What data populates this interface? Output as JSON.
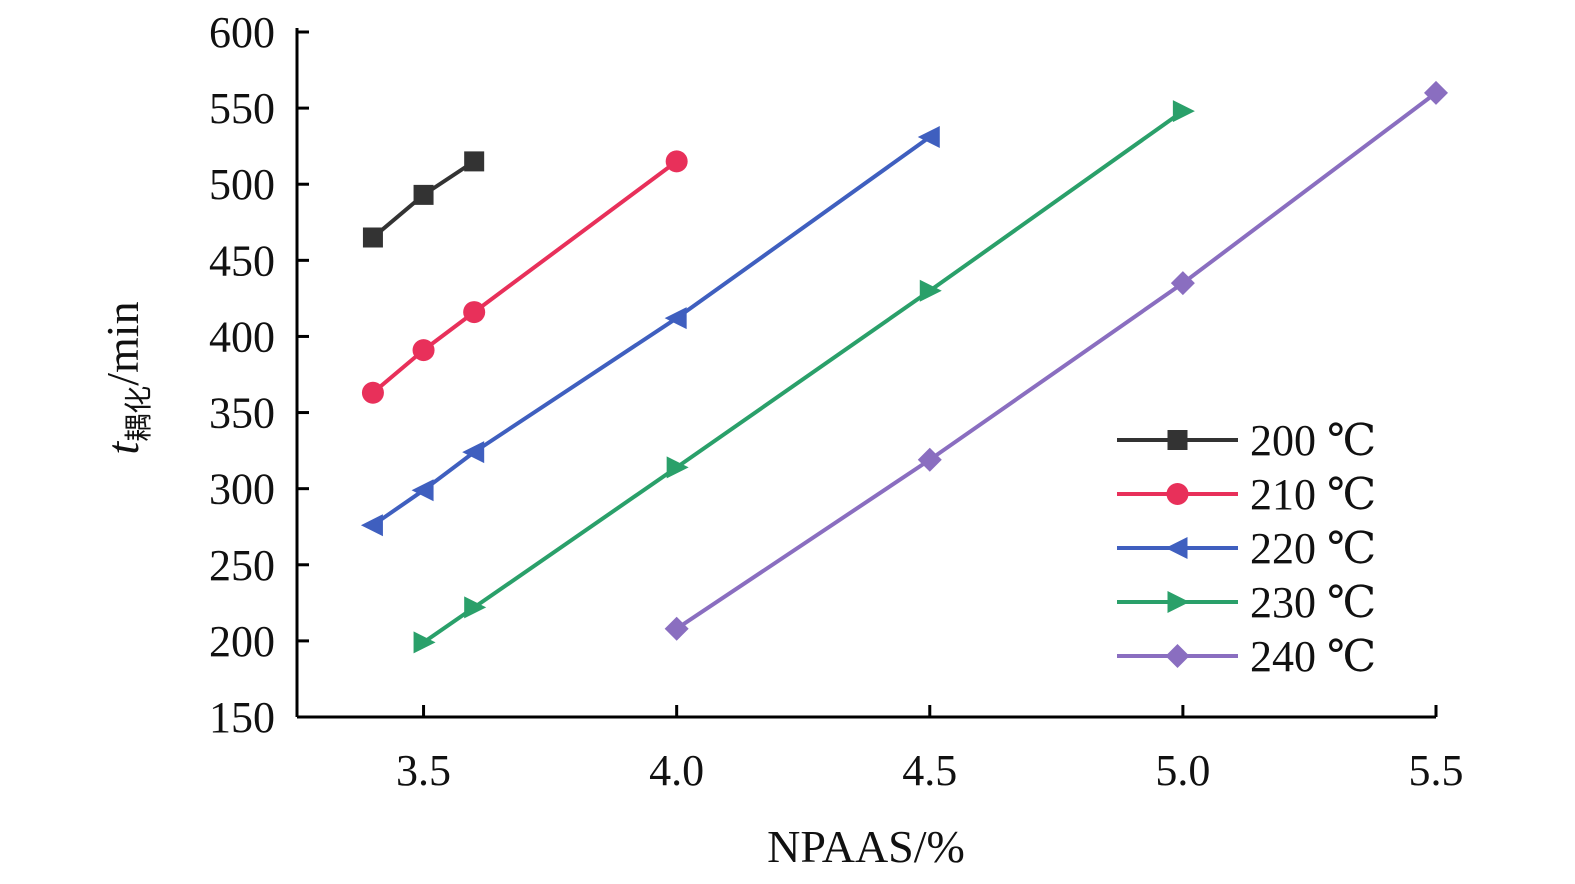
{
  "chart_data": {
    "type": "line",
    "title": "",
    "xlabel": "NPAAS/%",
    "ylabel": {
      "italic": "t",
      "subscript": "耦化",
      "unit": "/min"
    },
    "xlim": [
      3.25,
      5.5
    ],
    "ylim": [
      150,
      600
    ],
    "xticks": [
      "3.5",
      "4.0",
      "4.5",
      "5.0",
      "5.5"
    ],
    "xtick_values": [
      3.5,
      4.0,
      4.5,
      5.0,
      5.5
    ],
    "yticks": [
      "150",
      "200",
      "250",
      "300",
      "350",
      "400",
      "450",
      "500",
      "550",
      "600"
    ],
    "ytick_values": [
      150,
      200,
      250,
      300,
      350,
      400,
      450,
      500,
      550,
      600
    ],
    "grid": false,
    "legend_position": "bottom-right",
    "series": [
      {
        "name": "200 ℃",
        "color": "#333333",
        "marker": "square",
        "x": [
          3.4,
          3.5,
          3.6
        ],
        "y": [
          465,
          493,
          515
        ]
      },
      {
        "name": "210 ℃",
        "color": "#e8305a",
        "marker": "circle",
        "x": [
          3.4,
          3.5,
          3.6,
          4.0
        ],
        "y": [
          363,
          391,
          416,
          515
        ]
      },
      {
        "name": "220 ℃",
        "color": "#3f5fbf",
        "marker": "triangle-left",
        "x": [
          3.4,
          3.5,
          3.6,
          4.0,
          4.5
        ],
        "y": [
          276,
          299,
          324,
          412,
          531
        ]
      },
      {
        "name": "230 ℃",
        "color": "#2aa06a",
        "marker": "triangle-right",
        "x": [
          3.5,
          3.6,
          4.0,
          4.5,
          5.0
        ],
        "y": [
          199,
          222,
          314,
          430,
          548
        ]
      },
      {
        "name": "240 ℃",
        "color": "#8a6ec0",
        "marker": "diamond",
        "x": [
          4.0,
          4.5,
          5.0,
          5.5
        ],
        "y": [
          208,
          319,
          435,
          560
        ]
      }
    ]
  }
}
